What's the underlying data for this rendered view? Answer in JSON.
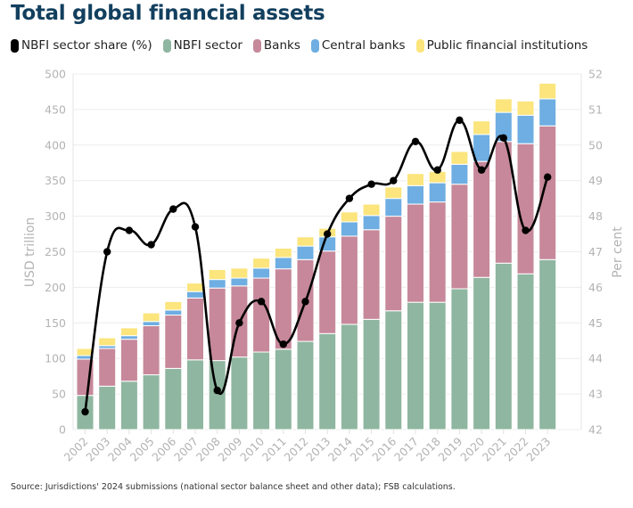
{
  "title": "Total global financial assets",
  "legend": [
    {
      "label": "NBFI sector share (%)",
      "color": "#000000"
    },
    {
      "label": "NBFI sector",
      "color": "#8fb6a0"
    },
    {
      "label": "Banks",
      "color": "#c6889a"
    },
    {
      "label": "Central banks",
      "color": "#6eaee2"
    },
    {
      "label": "Public financial institutions",
      "color": "#fbe57c"
    }
  ],
  "source": "Source: Jurisdictions' 2024 submissions (national sector balance sheet and other data); FSB calculations.",
  "chart_data": {
    "type": "bar",
    "title": "Total global financial assets",
    "stacked": true,
    "categories": [
      "2002",
      "2003",
      "2004",
      "2005",
      "2006",
      "2007",
      "2008",
      "2009",
      "2010",
      "2011",
      "2012",
      "2013",
      "2014",
      "2015",
      "2016",
      "2017",
      "2018",
      "2019",
      "2020",
      "2021",
      "2022",
      "2023"
    ],
    "series": [
      {
        "name": "NBFI sector",
        "axis": "left",
        "type": "bar",
        "color": "#8fb6a0",
        "values": [
          48,
          61,
          68,
          77,
          86,
          98,
          97,
          102,
          109,
          113,
          124,
          135,
          148,
          155,
          167,
          179,
          179,
          198,
          214,
          234,
          219,
          239
        ]
      },
      {
        "name": "Banks",
        "axis": "left",
        "type": "bar",
        "color": "#c6889a",
        "values": [
          51,
          53,
          59,
          69,
          75,
          87,
          102,
          100,
          104,
          113,
          115,
          116,
          124,
          126,
          133,
          138,
          141,
          147,
          163,
          171,
          183,
          188
        ]
      },
      {
        "name": "Central banks",
        "axis": "left",
        "type": "bar",
        "color": "#6eaee2",
        "values": [
          5,
          4,
          5,
          6,
          7,
          9,
          12,
          11,
          14,
          16,
          19,
          20,
          20,
          20,
          25,
          26,
          27,
          28,
          38,
          41,
          40,
          38
        ]
      },
      {
        "name": "Public financial institutions",
        "axis": "left",
        "type": "bar",
        "color": "#fbe57c",
        "values": [
          10,
          11,
          11,
          12,
          12,
          12,
          14,
          14,
          14,
          13,
          13,
          12,
          14,
          16,
          16,
          17,
          16,
          18,
          19,
          19,
          20,
          22
        ]
      },
      {
        "name": "NBFI sector share (%)",
        "axis": "right",
        "type": "line",
        "color": "#000000",
        "values": [
          42.5,
          47.0,
          47.6,
          47.2,
          48.2,
          47.7,
          43.1,
          45.0,
          45.6,
          44.4,
          45.6,
          47.5,
          48.5,
          48.9,
          49.0,
          50.1,
          49.3,
          50.7,
          49.3,
          50.2,
          47.6,
          49.1
        ]
      }
    ],
    "ylabel": "USD trillion",
    "ylim": [
      0,
      500
    ],
    "yticks": [
      "0",
      "50",
      "100",
      "150",
      "200",
      "250",
      "300",
      "350",
      "400",
      "450",
      "500"
    ],
    "y2label": "Per cent",
    "y2lim": [
      42,
      52
    ],
    "y2ticks": [
      "42",
      "43",
      "44",
      "45",
      "46",
      "47",
      "48",
      "49",
      "50",
      "51",
      "52"
    ],
    "grid": true,
    "legend_position": "top-left"
  }
}
